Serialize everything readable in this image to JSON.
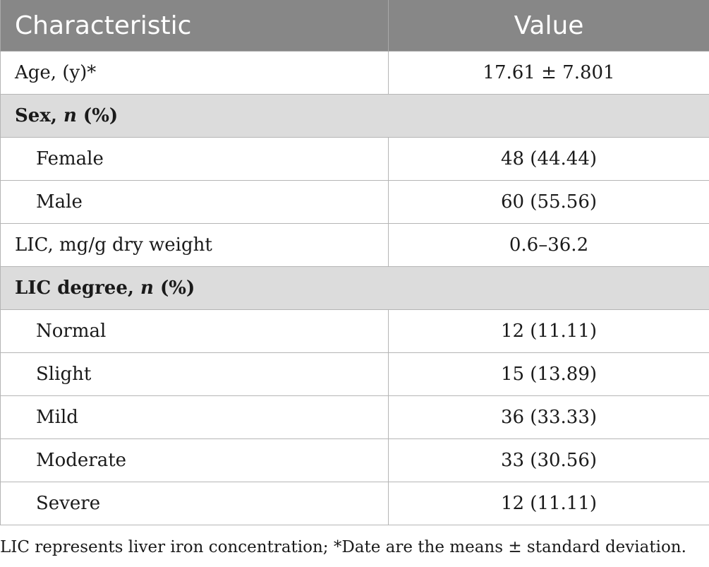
{
  "table": {
    "headers": [
      "Characteristic",
      "Value"
    ],
    "rows": [
      {
        "label": "Age, (y)*",
        "value": "17.61 ± 7.801"
      },
      {
        "section_prefix": "Sex, ",
        "section_italic": "n",
        "section_suffix": " (%)"
      },
      {
        "label": "Female",
        "value": "48 (44.44)"
      },
      {
        "label": "Male",
        "value": "60 (55.56)"
      },
      {
        "label": "LIC, mg/g dry weight",
        "value": "0.6–36.2"
      },
      {
        "section_prefix": "LIC degree, ",
        "section_italic": "n",
        "section_suffix": " (%)"
      },
      {
        "label": "Normal",
        "value": "12 (11.11)"
      },
      {
        "label": "Slight",
        "value": "15 (13.89)"
      },
      {
        "label": "Mild",
        "value": "36 (33.33)"
      },
      {
        "label": "Moderate",
        "value": "33 (30.56)"
      },
      {
        "label": "Severe",
        "value": "12 (11.11)"
      }
    ]
  },
  "footnote": "LIC represents liver iron concentration; *Date are the means ± standard deviation.",
  "colors": {
    "header_bg": "#878787",
    "header_text": "#ffffff",
    "section_bg": "#dcdcdc",
    "border": "#b5b5b5"
  }
}
